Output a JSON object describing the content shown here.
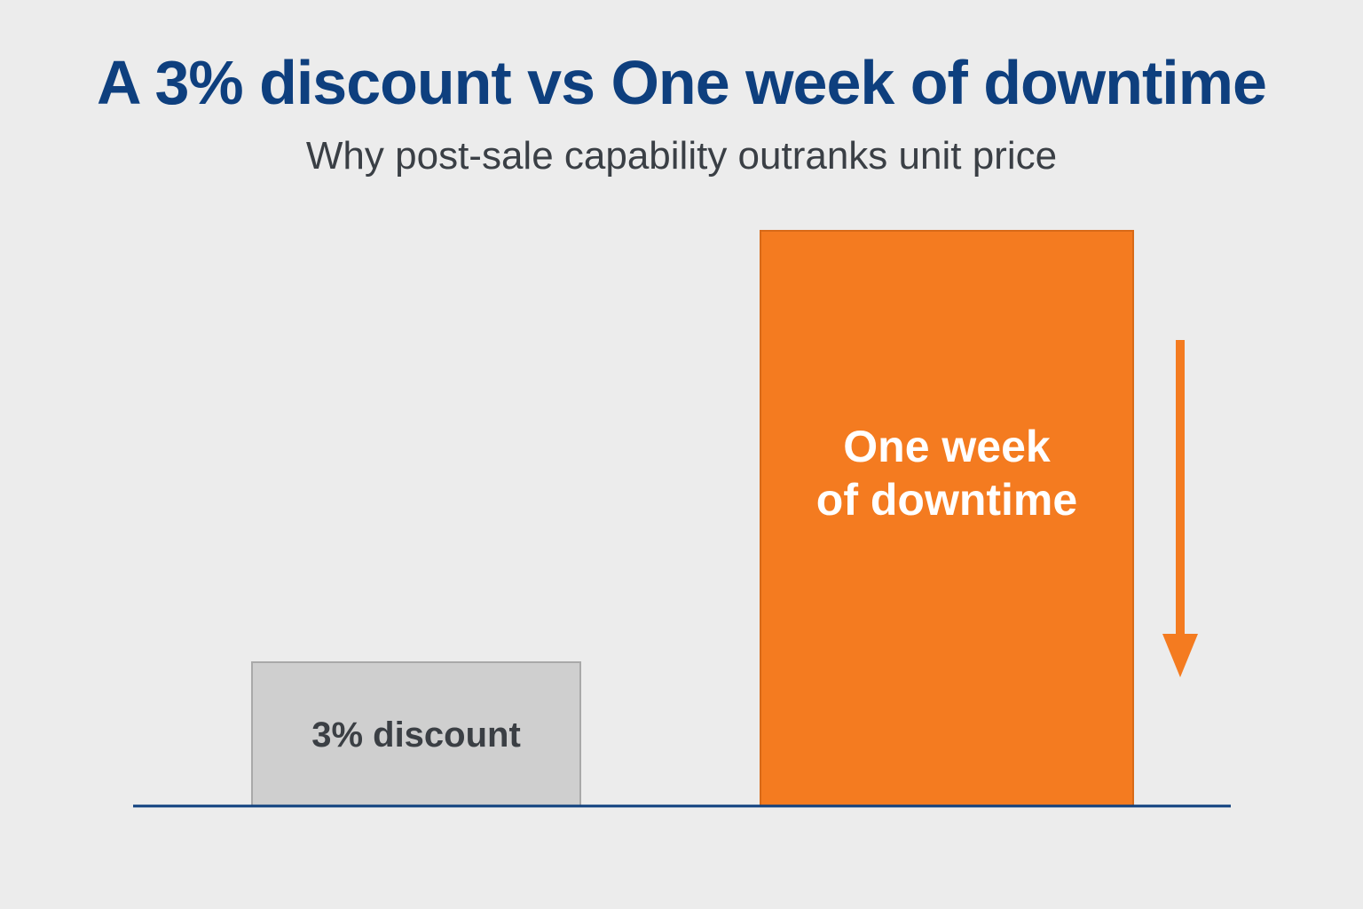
{
  "title": "A 3% discount vs One week of downtime",
  "subtitle": "Why post-sale capability outranks unit price",
  "colors": {
    "title": "#0e3f7e",
    "subtitle": "#3a3f45",
    "baseline": "#0e3f7e",
    "arrow": "#f47b20"
  },
  "chart_data": {
    "type": "bar",
    "categories": [
      "3% discount",
      "One week of downtime"
    ],
    "category_lines": [
      [
        "3% discount"
      ],
      [
        "One week",
        "of downtime"
      ]
    ],
    "values": [
      1,
      4
    ],
    "ylim": [
      0,
      4
    ],
    "axes_visible": false,
    "grid": false,
    "legend": "none",
    "bar_colors": [
      "#cfcfcf",
      "#f47b20"
    ],
    "bar_stroke_colors": [
      "#a9a9a9",
      "#d86a18"
    ],
    "label_colors": [
      "#3b3f44",
      "#ffffff"
    ],
    "annotation": "down-arrow"
  }
}
